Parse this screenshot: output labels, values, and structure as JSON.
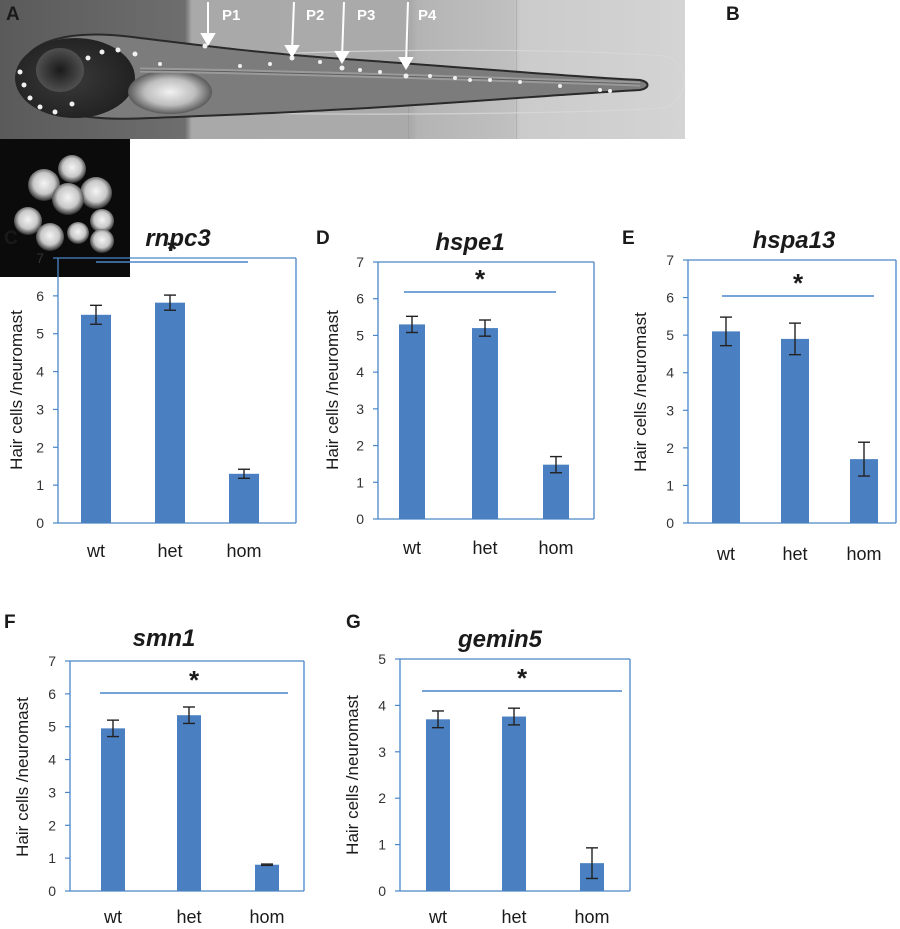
{
  "panels": {
    "a": {
      "letter": "A",
      "arrows": [
        {
          "label": "P1"
        },
        {
          "label": "P2"
        },
        {
          "label": "P3"
        },
        {
          "label": "P4"
        }
      ]
    },
    "b": {
      "letter": "B"
    }
  },
  "colors": {
    "bar": "#4a7fc1",
    "frame": "#4a86c8",
    "sig_line": "#4a86c8"
  },
  "chart_data": [
    {
      "id": "C",
      "letter": "C",
      "type": "bar",
      "title": "rnpc3",
      "categories": [
        "wt",
        "het",
        "hom"
      ],
      "values": [
        5.5,
        5.82,
        1.3
      ],
      "errors": [
        0.25,
        0.2,
        0.12
      ],
      "ylabel": "Hair cells /neuromast",
      "ylim": [
        0,
        7
      ],
      "yticks": [
        "0",
        "1",
        "2",
        "3",
        "4",
        "5",
        "6",
        "7"
      ],
      "significance": "*"
    },
    {
      "id": "D",
      "letter": "D",
      "type": "bar",
      "title": "hspe1",
      "categories": [
        "wt",
        "het",
        "hom"
      ],
      "values": [
        5.3,
        5.2,
        1.48
      ],
      "errors": [
        0.22,
        0.22,
        0.22
      ],
      "ylabel": "Hair cells /neuromast",
      "ylim": [
        0,
        7
      ],
      "yticks": [
        "0",
        "1",
        "2",
        "3",
        "4",
        "5",
        "6",
        "7"
      ],
      "significance": "*"
    },
    {
      "id": "E",
      "letter": "E",
      "type": "bar",
      "title": "hspa13",
      "categories": [
        "wt",
        "het",
        "hom"
      ],
      "values": [
        5.1,
        4.9,
        1.7
      ],
      "errors": [
        0.38,
        0.42,
        0.45
      ],
      "ylabel": "Hair cells /neuromast",
      "ylim": [
        0,
        7
      ],
      "yticks": [
        "0",
        "1",
        "2",
        "3",
        "4",
        "5",
        "6",
        "7"
      ],
      "significance": "*"
    },
    {
      "id": "F",
      "letter": "F",
      "type": "bar",
      "title": "smn1",
      "categories": [
        "wt",
        "het",
        "hom"
      ],
      "values": [
        4.95,
        5.35,
        0.8
      ],
      "errors": [
        0.25,
        0.25,
        0.02
      ],
      "ylabel": "Hair cells /neuromast",
      "ylim": [
        0,
        7
      ],
      "yticks": [
        "0",
        "1",
        "2",
        "3",
        "4",
        "5",
        "6",
        "7"
      ],
      "significance": "*"
    },
    {
      "id": "G",
      "letter": "G",
      "type": "bar",
      "title": "gemin5",
      "categories": [
        "wt",
        "het",
        "hom"
      ],
      "values": [
        3.7,
        3.76,
        0.6
      ],
      "errors": [
        0.18,
        0.18,
        0.33
      ],
      "ylabel": "Hair cells /neuromast",
      "ylim": [
        0,
        5
      ],
      "yticks": [
        "0",
        "1",
        "2",
        "3",
        "4",
        "5"
      ],
      "significance": "*"
    }
  ]
}
